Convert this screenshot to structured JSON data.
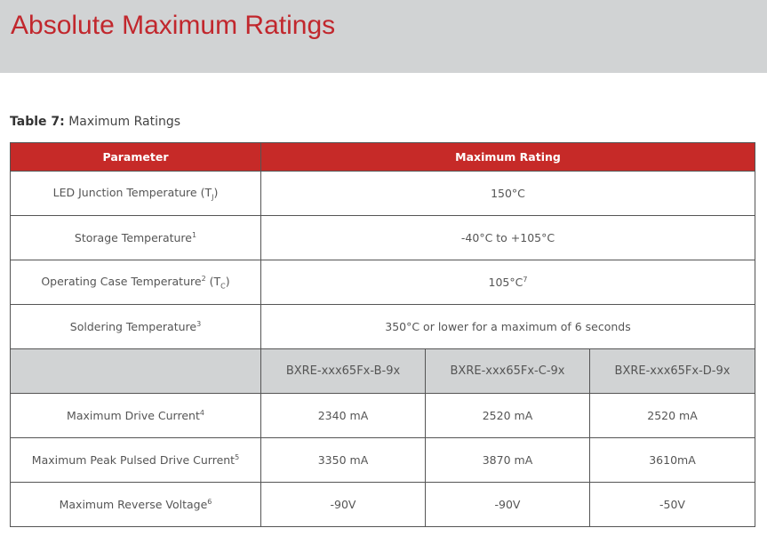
{
  "header": {
    "title": "Absolute Maximum Ratings"
  },
  "table": {
    "caption": {
      "label": "Table 7:",
      "text": "Maximum Ratings"
    },
    "columns": [
      "Parameter",
      "Maximum Rating"
    ],
    "rows": [
      {
        "parameter": [
          {
            "text": "LED Junction Temperature (T"
          },
          {
            "text": "J",
            "pos": "sub"
          },
          {
            "text": ")"
          }
        ],
        "rating": [
          {
            "text": "150°C"
          }
        ]
      },
      {
        "parameter": [
          {
            "text": "Storage Temperature"
          },
          {
            "text": "1",
            "pos": "sup"
          }
        ],
        "rating": [
          {
            "text": "-40°C to +105°C"
          }
        ]
      },
      {
        "parameter": [
          {
            "text": "Operating Case Temperature"
          },
          {
            "text": "2",
            "pos": "sup"
          },
          {
            "text": " (T"
          },
          {
            "text": "C",
            "pos": "sub"
          },
          {
            "text": ")"
          }
        ],
        "rating": [
          {
            "text": "105°C"
          },
          {
            "text": "7",
            "pos": "sup"
          }
        ]
      },
      {
        "parameter": [
          {
            "text": "Soldering Temperature"
          },
          {
            "text": "3",
            "pos": "sup"
          }
        ],
        "rating": [
          {
            "text": "350°C or lower for a maximum of 6 seconds"
          }
        ]
      }
    ],
    "variants": [
      "BXRE-xxx65Fx-B-9x",
      "BXRE-xxx65Fx-C-9x",
      "BXRE-xxx65Fx-D-9x"
    ],
    "specs": [
      {
        "parameter": [
          {
            "text": "Maximum Drive Current"
          },
          {
            "text": "4",
            "pos": "sup"
          }
        ],
        "values": [
          "2340 mA",
          "2520 mA",
          "2520 mA"
        ]
      },
      {
        "parameter": [
          {
            "text": "Maximum Peak Pulsed Drive Current"
          },
          {
            "text": "5",
            "pos": "sup"
          }
        ],
        "values": [
          "3350 mA",
          "3870 mA",
          "3610mA"
        ]
      },
      {
        "parameter": [
          {
            "text": "Maximum Reverse Voltage"
          },
          {
            "text": "6",
            "pos": "sup"
          }
        ],
        "values": [
          "-90V",
          "-90V",
          "-50V"
        ]
      }
    ]
  }
}
